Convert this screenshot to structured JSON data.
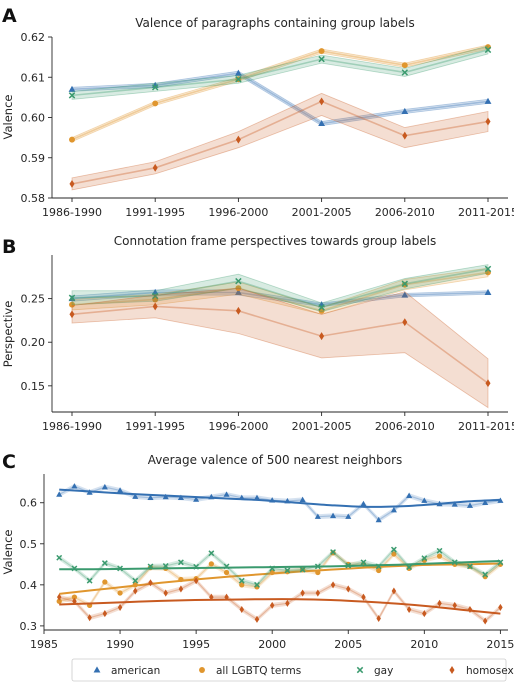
{
  "colors": {
    "american": "#3470b2",
    "lgbtq": "#e0962e",
    "gay": "#3a9a6e",
    "homosexual": "#c85a20"
  },
  "legend": {
    "position": "bottom",
    "items": [
      {
        "key": "american",
        "label": "american",
        "marker": "triangle"
      },
      {
        "key": "lgbtq",
        "label": "all LGBTQ terms",
        "marker": "circle"
      },
      {
        "key": "gay",
        "label": "gay",
        "marker": "x"
      },
      {
        "key": "homosexual",
        "label": "homosexual",
        "marker": "diamond"
      }
    ]
  },
  "chart_data": [
    {
      "panel": "A",
      "type": "line",
      "title": "Valence of paragraphs containing group labels",
      "ylabel": "Valence",
      "categories": [
        "1986-1990",
        "1991-1995",
        "1996-2000",
        "2001-2005",
        "2006-2010",
        "2011-2015"
      ],
      "ylim": [
        0.58,
        0.62
      ],
      "yticks": [
        0.58,
        0.59,
        0.6,
        0.61,
        0.62
      ],
      "series": [
        {
          "key": "american",
          "values": [
            0.607,
            0.608,
            0.611,
            0.5985,
            0.6015,
            0.604
          ],
          "lower": [
            0.6065,
            0.6075,
            0.6105,
            0.598,
            0.601,
            0.6035
          ],
          "upper": [
            0.6075,
            0.6085,
            0.6115,
            0.599,
            0.602,
            0.6045
          ]
        },
        {
          "key": "lgbtq",
          "values": [
            0.5945,
            0.6035,
            0.6095,
            0.6165,
            0.613,
            0.6175
          ],
          "lower": [
            0.594,
            0.603,
            0.609,
            0.616,
            0.6125,
            0.617
          ],
          "upper": [
            0.595,
            0.604,
            0.61,
            0.617,
            0.6135,
            0.618
          ]
        },
        {
          "key": "gay",
          "values": [
            0.6055,
            0.6075,
            0.6095,
            0.6145,
            0.6112,
            0.6168
          ],
          "lower": [
            0.6045,
            0.6065,
            0.6085,
            0.6135,
            0.6102,
            0.6158
          ],
          "upper": [
            0.6065,
            0.6085,
            0.6105,
            0.6155,
            0.6122,
            0.6178
          ]
        },
        {
          "key": "homosexual",
          "values": [
            0.5835,
            0.5875,
            0.5945,
            0.604,
            0.5955,
            0.599
          ],
          "lower": [
            0.582,
            0.586,
            0.5925,
            0.6005,
            0.5925,
            0.5965
          ],
          "upper": [
            0.585,
            0.589,
            0.5965,
            0.606,
            0.5975,
            0.6015
          ]
        }
      ]
    },
    {
      "panel": "B",
      "type": "line",
      "title": "Connotation frame perspectives towards group labels",
      "ylabel": "Perspective",
      "categories": [
        "1986-1990",
        "1991-1995",
        "1996-2000",
        "2001-2005",
        "2006-2010",
        "2011-2015"
      ],
      "ylim": [
        0.12,
        0.3
      ],
      "yticks": [
        0.15,
        0.2,
        0.25
      ],
      "series": [
        {
          "key": "american",
          "values": [
            0.25,
            0.257,
            0.257,
            0.243,
            0.254,
            0.257
          ],
          "lower": [
            0.247,
            0.254,
            0.254,
            0.241,
            0.252,
            0.255
          ],
          "upper": [
            0.253,
            0.26,
            0.26,
            0.245,
            0.256,
            0.259
          ]
        },
        {
          "key": "lgbtq",
          "values": [
            0.243,
            0.249,
            0.262,
            0.236,
            0.266,
            0.28
          ],
          "lower": [
            0.237,
            0.243,
            0.255,
            0.232,
            0.26,
            0.275
          ],
          "upper": [
            0.249,
            0.255,
            0.269,
            0.24,
            0.272,
            0.285
          ]
        },
        {
          "key": "gay",
          "values": [
            0.251,
            0.253,
            0.27,
            0.24,
            0.267,
            0.284
          ],
          "lower": [
            0.243,
            0.247,
            0.262,
            0.235,
            0.261,
            0.279
          ],
          "upper": [
            0.259,
            0.259,
            0.278,
            0.245,
            0.273,
            0.289
          ]
        },
        {
          "key": "homosexual",
          "values": [
            0.232,
            0.241,
            0.236,
            0.207,
            0.223,
            0.153
          ],
          "lower": [
            0.222,
            0.228,
            0.21,
            0.182,
            0.188,
            0.125
          ],
          "upper": [
            0.242,
            0.254,
            0.262,
            0.232,
            0.258,
            0.181
          ]
        }
      ]
    },
    {
      "panel": "C",
      "type": "scatter",
      "title": "Average valence of 500 nearest neighbors",
      "ylabel": "Valence",
      "xlim": [
        1985,
        2015.5
      ],
      "xticks": [
        1985,
        1990,
        1995,
        2000,
        2005,
        2010,
        2015
      ],
      "ylim": [
        0.29,
        0.67
      ],
      "yticks": [
        0.3,
        0.4,
        0.5,
        0.6
      ],
      "x": [
        1986,
        1987,
        1988,
        1989,
        1990,
        1991,
        1992,
        1993,
        1994,
        1995,
        1996,
        1997,
        1998,
        1999,
        2000,
        2001,
        2002,
        2003,
        2004,
        2005,
        2006,
        2007,
        2008,
        2009,
        2010,
        2011,
        2012,
        2013,
        2014,
        2015
      ],
      "series": [
        {
          "key": "american",
          "values": [
            0.62,
            0.64,
            0.625,
            0.638,
            0.63,
            0.615,
            0.612,
            0.614,
            0.612,
            0.608,
            0.614,
            0.62,
            0.612,
            0.612,
            0.606,
            0.604,
            0.607,
            0.566,
            0.568,
            0.566,
            0.597,
            0.558,
            0.582,
            0.617,
            0.605,
            0.597,
            0.596,
            0.593,
            0.6,
            0.605
          ],
          "trend": [
            0.632,
            0.627,
            0.622,
            0.618,
            0.614,
            0.61,
            0.606,
            0.6,
            0.594,
            0.59,
            0.591,
            0.596,
            0.603,
            0.607
          ]
        },
        {
          "key": "lgbtq",
          "values": [
            0.36,
            0.37,
            0.35,
            0.407,
            0.38,
            0.4,
            0.442,
            0.44,
            0.413,
            0.415,
            0.451,
            0.43,
            0.4,
            0.395,
            0.43,
            0.432,
            0.437,
            0.43,
            0.478,
            0.45,
            0.45,
            0.435,
            0.475,
            0.44,
            0.46,
            0.47,
            0.45,
            0.445,
            0.42,
            0.45
          ],
          "trend": [
            0.378,
            0.387,
            0.396,
            0.405,
            0.413,
            0.42,
            0.426,
            0.432,
            0.437,
            0.442,
            0.446,
            0.449,
            0.45,
            0.452
          ]
        },
        {
          "key": "gay",
          "values": [
            0.466,
            0.44,
            0.41,
            0.453,
            0.44,
            0.41,
            0.445,
            0.446,
            0.455,
            0.444,
            0.477,
            0.445,
            0.41,
            0.4,
            0.44,
            0.435,
            0.437,
            0.445,
            0.48,
            0.447,
            0.455,
            0.445,
            0.486,
            0.443,
            0.465,
            0.483,
            0.455,
            0.445,
            0.425,
            0.455
          ],
          "trend": [
            0.438,
            0.438,
            0.439,
            0.44,
            0.441,
            0.442,
            0.443,
            0.444,
            0.445,
            0.447,
            0.449,
            0.452,
            0.455,
            0.458
          ]
        },
        {
          "key": "homosexual",
          "values": [
            0.37,
            0.36,
            0.32,
            0.33,
            0.345,
            0.385,
            0.405,
            0.38,
            0.39,
            0.41,
            0.37,
            0.37,
            0.34,
            0.316,
            0.35,
            0.355,
            0.38,
            0.38,
            0.4,
            0.39,
            0.37,
            0.318,
            0.385,
            0.34,
            0.33,
            0.355,
            0.35,
            0.34,
            0.312,
            0.345
          ],
          "trend": [
            0.352,
            0.355,
            0.358,
            0.361,
            0.363,
            0.364,
            0.365,
            0.365,
            0.363,
            0.359,
            0.354,
            0.347,
            0.338,
            0.33
          ]
        }
      ]
    }
  ]
}
